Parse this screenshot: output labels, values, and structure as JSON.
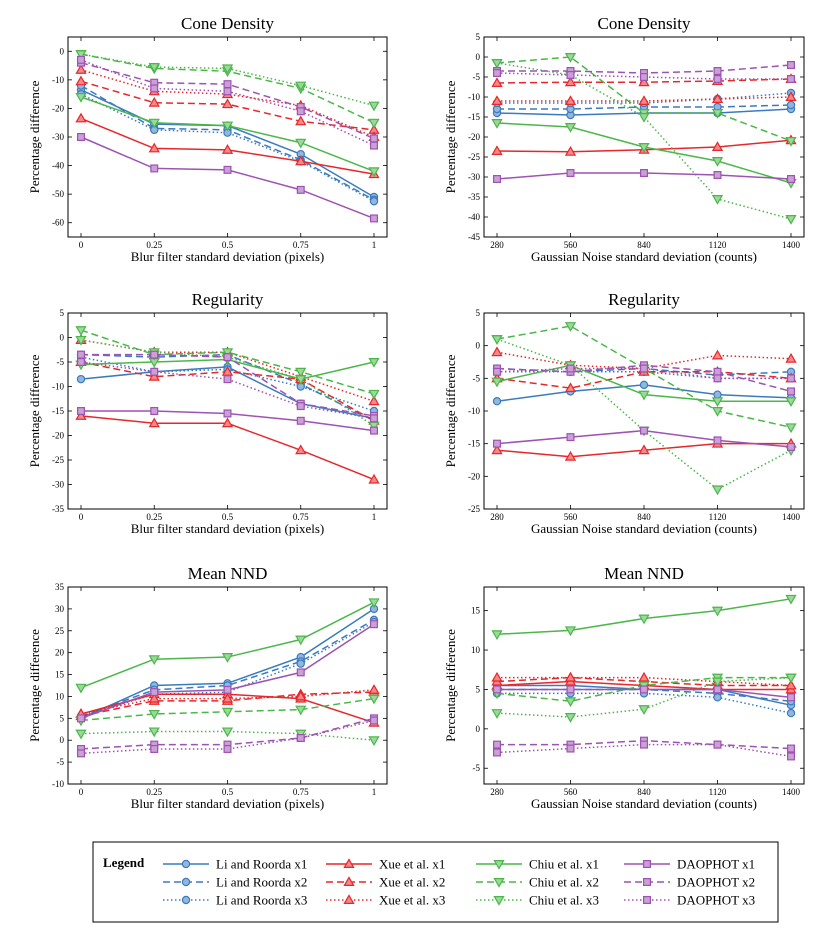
{
  "chart_data": [
    {
      "type": "line",
      "title": "Cone Density",
      "xlabel": "Blur filter standard deviation (pixels)",
      "ylabel": "Percentage difference",
      "categories": [
        "0",
        "0.25",
        "0.5",
        "0.75",
        "1"
      ],
      "ylim": [
        -65,
        5
      ],
      "yticks": [
        "-60",
        "-50",
        "-40",
        "-30",
        "-20",
        "-10",
        "0"
      ],
      "series": [
        {
          "name": "Li and Roorda x1",
          "values": [
            -13.5,
            -25.5,
            -26,
            -36,
            -51
          ]
        },
        {
          "name": "Li and Roorda x2",
          "values": [
            -12,
            -27,
            -27.5,
            -38,
            -52
          ]
        },
        {
          "name": "Li and Roorda x3",
          "values": [
            -15,
            -27.5,
            -28.5,
            -38.5,
            -52.5
          ]
        },
        {
          "name": "Xue et al. x1",
          "values": [
            -23.5,
            -34,
            -34.5,
            -38.5,
            -43
          ]
        },
        {
          "name": "Xue et al. x2",
          "values": [
            -10.5,
            -18,
            -18.5,
            -24.5,
            -27.5
          ]
        },
        {
          "name": "Xue et al. x3",
          "values": [
            -6.5,
            -14,
            -15,
            -19,
            -30
          ]
        },
        {
          "name": "Chiu et al. x1",
          "values": [
            -16,
            -25,
            -26,
            -32,
            -42
          ]
        },
        {
          "name": "Chiu et al. x2",
          "values": [
            -1,
            -6,
            -7,
            -13,
            -25
          ]
        },
        {
          "name": "Chiu et al. x3",
          "values": [
            -1,
            -5.5,
            -6,
            -12,
            -19
          ]
        },
        {
          "name": "DAOPHOT x1",
          "values": [
            -30,
            -41,
            -41.5,
            -48.5,
            -58.5
          ]
        },
        {
          "name": "DAOPHOT x2",
          "values": [
            -4,
            -11,
            -11.5,
            -19.5,
            -30.5
          ]
        },
        {
          "name": "DAOPHOT x3",
          "values": [
            -3,
            -13,
            -14,
            -21,
            -33
          ]
        }
      ]
    },
    {
      "type": "line",
      "title": "Cone Density",
      "xlabel": "Gaussian Noise standard deviation (counts)",
      "ylabel": "Percentage difference",
      "categories": [
        "280",
        "560",
        "840",
        "1120",
        "1400"
      ],
      "ylim": [
        -45,
        5
      ],
      "yticks": [
        "-45",
        "-40",
        "-35",
        "-30",
        "-25",
        "-20",
        "-15",
        "-10",
        "-5",
        "0",
        "5"
      ],
      "series": [
        {
          "name": "Li and Roorda x1",
          "values": [
            -14,
            -14.5,
            -14,
            -14,
            -13
          ]
        },
        {
          "name": "Li and Roorda x2",
          "values": [
            -13,
            -13,
            -12.5,
            -12.5,
            -12
          ]
        },
        {
          "name": "Li and Roorda x3",
          "values": [
            -11.5,
            -11.5,
            -11.5,
            -10.5,
            -9
          ]
        },
        {
          "name": "Xue et al. x1",
          "values": [
            -23.5,
            -23.7,
            -23.2,
            -22.5,
            -20.8
          ]
        },
        {
          "name": "Xue et al. x2",
          "values": [
            -6.5,
            -6.3,
            -6.3,
            -6,
            -5.5
          ]
        },
        {
          "name": "Xue et al. x3",
          "values": [
            -11,
            -11,
            -11,
            -10.5,
            -10
          ]
        },
        {
          "name": "Chiu et al. x1",
          "values": [
            -16.5,
            -17.5,
            -22.5,
            -26,
            -31.5
          ]
        },
        {
          "name": "Chiu et al. x2",
          "values": [
            -1.5,
            0,
            -14,
            -14,
            -21
          ]
        },
        {
          "name": "Chiu et al. x3",
          "values": [
            -1.5,
            -4.5,
            -15,
            -35.5,
            -40.5
          ]
        },
        {
          "name": "DAOPHOT x1",
          "values": [
            -30.5,
            -29,
            -29,
            -29.5,
            -30.5
          ]
        },
        {
          "name": "DAOPHOT x2",
          "values": [
            -3.5,
            -3.5,
            -4,
            -3.5,
            -2
          ]
        },
        {
          "name": "DAOPHOT x3",
          "values": [
            -4,
            -4.5,
            -5,
            -5.5,
            -5.5
          ]
        }
      ]
    },
    {
      "type": "line",
      "title": "Regularity",
      "xlabel": "Blur filter standard deviation (pixels)",
      "ylabel": "Percentage difference",
      "categories": [
        "0",
        "0.25",
        "0.5",
        "0.75",
        "1"
      ],
      "ylim": [
        -35,
        5
      ],
      "yticks": [
        "-35",
        "-30",
        "-25",
        "-20",
        "-15",
        "-10",
        "-5",
        "0",
        "5"
      ],
      "series": [
        {
          "name": "Li and Roorda x1",
          "values": [
            -8.5,
            -7,
            -6,
            -13.5,
            -16.5
          ]
        },
        {
          "name": "Li and Roorda x2",
          "values": [
            -3.5,
            -4,
            -3.5,
            -9.5,
            -17
          ]
        },
        {
          "name": "Li and Roorda x3",
          "values": [
            -4,
            -7,
            -6.5,
            -10,
            -15
          ]
        },
        {
          "name": "Xue et al. x1",
          "values": [
            -16,
            -17.5,
            -17.5,
            -23,
            -29
          ]
        },
        {
          "name": "Xue et al. x2",
          "values": [
            -5,
            -8,
            -7,
            -8.5,
            -17
          ]
        },
        {
          "name": "Xue et al. x3",
          "values": [
            -0.5,
            -3,
            -3,
            -8,
            -13
          ]
        },
        {
          "name": "Chiu et al. x1",
          "values": [
            -5.5,
            -5,
            -4.5,
            -8.5,
            -5
          ]
        },
        {
          "name": "Chiu et al. x2",
          "values": [
            1.5,
            -3.5,
            -3,
            -7,
            -11.5
          ]
        },
        {
          "name": "Chiu et al. x3",
          "values": [
            -0.5,
            -3,
            -4,
            -8.5,
            -18
          ]
        },
        {
          "name": "DAOPHOT x1",
          "values": [
            -15,
            -15,
            -15.5,
            -17,
            -19
          ]
        },
        {
          "name": "DAOPHOT x2",
          "values": [
            -3.5,
            -3.5,
            -4,
            -13.5,
            -16
          ]
        },
        {
          "name": "DAOPHOT x3",
          "values": [
            -5,
            -7,
            -8.5,
            -14,
            -16.5
          ]
        }
      ]
    },
    {
      "type": "line",
      "title": "Regularity",
      "xlabel": "Gaussian Noise standard deviation (counts)",
      "ylabel": "Percentage difference",
      "categories": [
        "280",
        "560",
        "840",
        "1120",
        "1400"
      ],
      "ylim": [
        -25,
        5
      ],
      "yticks": [
        "-25",
        "-20",
        "-15",
        "-10",
        "-5",
        "0",
        "5"
      ],
      "series": [
        {
          "name": "Li and Roorda x1",
          "values": [
            -8.5,
            -7,
            -6,
            -7.5,
            -8
          ]
        },
        {
          "name": "Li and Roorda x2",
          "values": [
            -3.5,
            -4,
            -3.5,
            -4.5,
            -4
          ]
        },
        {
          "name": "Li and Roorda x3",
          "values": [
            -4,
            -4,
            -4,
            -5,
            -5
          ]
        },
        {
          "name": "Xue et al. x1",
          "values": [
            -16,
            -17,
            -16,
            -15,
            -15
          ]
        },
        {
          "name": "Xue et al. x2",
          "values": [
            -5,
            -6.5,
            -4,
            -4,
            -5
          ]
        },
        {
          "name": "Xue et al. x3",
          "values": [
            -1,
            -3,
            -3.5,
            -1.5,
            -2
          ]
        },
        {
          "name": "Chiu et al. x1",
          "values": [
            -5.5,
            -3,
            -7.5,
            -8.5,
            -8.5
          ]
        },
        {
          "name": "Chiu et al. x2",
          "values": [
            1,
            3,
            -3.5,
            -10,
            -12.5
          ]
        },
        {
          "name": "Chiu et al. x3",
          "values": [
            1,
            -3,
            -13,
            -22,
            -16
          ]
        },
        {
          "name": "DAOPHOT x1",
          "values": [
            -15,
            -14,
            -13,
            -14.5,
            -15.5
          ]
        },
        {
          "name": "DAOPHOT x2",
          "values": [
            -3.5,
            -4,
            -3,
            -4,
            -7
          ]
        },
        {
          "name": "DAOPHOT x3",
          "values": [
            -4,
            -3.5,
            -3.5,
            -5,
            -5
          ]
        }
      ]
    },
    {
      "type": "line",
      "title": "Mean NND",
      "xlabel": "Blur filter standard deviation (pixels)",
      "ylabel": "Percentage difference",
      "categories": [
        "0",
        "0.25",
        "0.5",
        "0.75",
        "1"
      ],
      "ylim": [
        -10,
        35
      ],
      "yticks": [
        "-10",
        "-5",
        "0",
        "5",
        "10",
        "15",
        "20",
        "25",
        "30",
        "35"
      ],
      "series": [
        {
          "name": "Li and Roorda x1",
          "values": [
            5,
            12.5,
            13,
            19,
            30
          ]
        },
        {
          "name": "Li and Roorda x2",
          "values": [
            5.5,
            11.5,
            12.5,
            18,
            27.5
          ]
        },
        {
          "name": "Li and Roorda x3",
          "values": [
            5.5,
            10.5,
            11,
            17.5,
            27
          ]
        },
        {
          "name": "Xue et al. x1",
          "values": [
            6,
            10.5,
            10.5,
            9.5,
            4
          ]
        },
        {
          "name": "Xue et al. x2",
          "values": [
            5.5,
            9,
            9,
            10.5,
            11
          ]
        },
        {
          "name": "Xue et al. x3",
          "values": [
            6,
            9.5,
            9.5,
            10,
            11.5
          ]
        },
        {
          "name": "Chiu et al. x1",
          "values": [
            12,
            18.5,
            19,
            23,
            31.5
          ]
        },
        {
          "name": "Chiu et al. x2",
          "values": [
            4.5,
            6,
            6.5,
            7,
            9.5
          ]
        },
        {
          "name": "Chiu et al. x3",
          "values": [
            1.5,
            2,
            2,
            1.5,
            0
          ]
        },
        {
          "name": "DAOPHOT x1",
          "values": [
            5,
            11,
            11.5,
            15.5,
            26.5
          ]
        },
        {
          "name": "DAOPHOT x2",
          "values": [
            -2,
            -1,
            -1,
            0.5,
            5
          ]
        },
        {
          "name": "DAOPHOT x3",
          "values": [
            -3,
            -2,
            -2,
            0.5,
            4.5
          ]
        }
      ]
    },
    {
      "type": "line",
      "title": "Mean NND",
      "xlabel": "Gaussian Noise standard deviation (counts)",
      "ylabel": "Percentage difference",
      "categories": [
        "280",
        "560",
        "840",
        "1120",
        "1400"
      ],
      "ylim": [
        -7,
        18
      ],
      "yticks": [
        "-5",
        "0",
        "5",
        "10",
        "15"
      ],
      "series": [
        {
          "name": "Li and Roorda x1",
          "values": [
            5.5,
            5.5,
            5,
            5,
            3
          ]
        },
        {
          "name": "Li and Roorda x2",
          "values": [
            5,
            5,
            5,
            4.5,
            3.5
          ]
        },
        {
          "name": "Li and Roorda x3",
          "values": [
            4.5,
            4.5,
            4.5,
            4,
            2
          ]
        },
        {
          "name": "Xue et al. x1",
          "values": [
            5.5,
            6,
            5.5,
            5,
            5
          ]
        },
        {
          "name": "Xue et al. x2",
          "values": [
            6,
            6.5,
            6,
            5.5,
            5.5
          ]
        },
        {
          "name": "Xue et al. x3",
          "values": [
            6.5,
            6.5,
            6.5,
            6,
            5.5
          ]
        },
        {
          "name": "Chiu et al. x1",
          "values": [
            12,
            12.5,
            14,
            15,
            16.5
          ]
        },
        {
          "name": "Chiu et al. x2",
          "values": [
            4.5,
            3.5,
            5.5,
            6.5,
            6.5
          ]
        },
        {
          "name": "Chiu et al. x3",
          "values": [
            2,
            1.5,
            2.5,
            6,
            6.5
          ]
        },
        {
          "name": "DAOPHOT x1",
          "values": [
            5,
            5,
            5,
            5,
            4
          ]
        },
        {
          "name": "DAOPHOT x2",
          "values": [
            -2,
            -2,
            -1.5,
            -2,
            -2.5
          ]
        },
        {
          "name": "DAOPHOT x3",
          "values": [
            -3,
            -2.5,
            -2,
            -2,
            -3.5
          ]
        }
      ]
    }
  ],
  "legend": {
    "title": "Legend",
    "entries": [
      {
        "name": "Li and Roorda x1",
        "color": "#3a7bbf",
        "marker": "circle",
        "dash": "solid"
      },
      {
        "name": "Li and Roorda x2",
        "color": "#3a7bbf",
        "marker": "circle",
        "dash": "dashed"
      },
      {
        "name": "Li and Roorda x3",
        "color": "#3a7bbf",
        "marker": "circle",
        "dash": "dotted"
      },
      {
        "name": "Xue et al. x1",
        "color": "#e8272a",
        "marker": "triangle-up",
        "dash": "solid"
      },
      {
        "name": "Xue et al. x2",
        "color": "#e8272a",
        "marker": "triangle-up",
        "dash": "dashed"
      },
      {
        "name": "Xue et al. x3",
        "color": "#e8272a",
        "marker": "triangle-up",
        "dash": "dotted"
      },
      {
        "name": "Chiu et al. x1",
        "color": "#4bb749",
        "marker": "triangle-down",
        "dash": "solid"
      },
      {
        "name": "Chiu et al. x2",
        "color": "#4bb749",
        "marker": "triangle-down",
        "dash": "dashed"
      },
      {
        "name": "Chiu et al. x3",
        "color": "#4bb749",
        "marker": "triangle-down",
        "dash": "dotted"
      },
      {
        "name": "DAOPHOT x1",
        "color": "#9e52b3",
        "marker": "square",
        "dash": "solid"
      },
      {
        "name": "DAOPHOT x2",
        "color": "#9e52b3",
        "marker": "square",
        "dash": "dashed"
      },
      {
        "name": "DAOPHOT x3",
        "color": "#9e52b3",
        "marker": "square",
        "dash": "dotted"
      }
    ]
  }
}
